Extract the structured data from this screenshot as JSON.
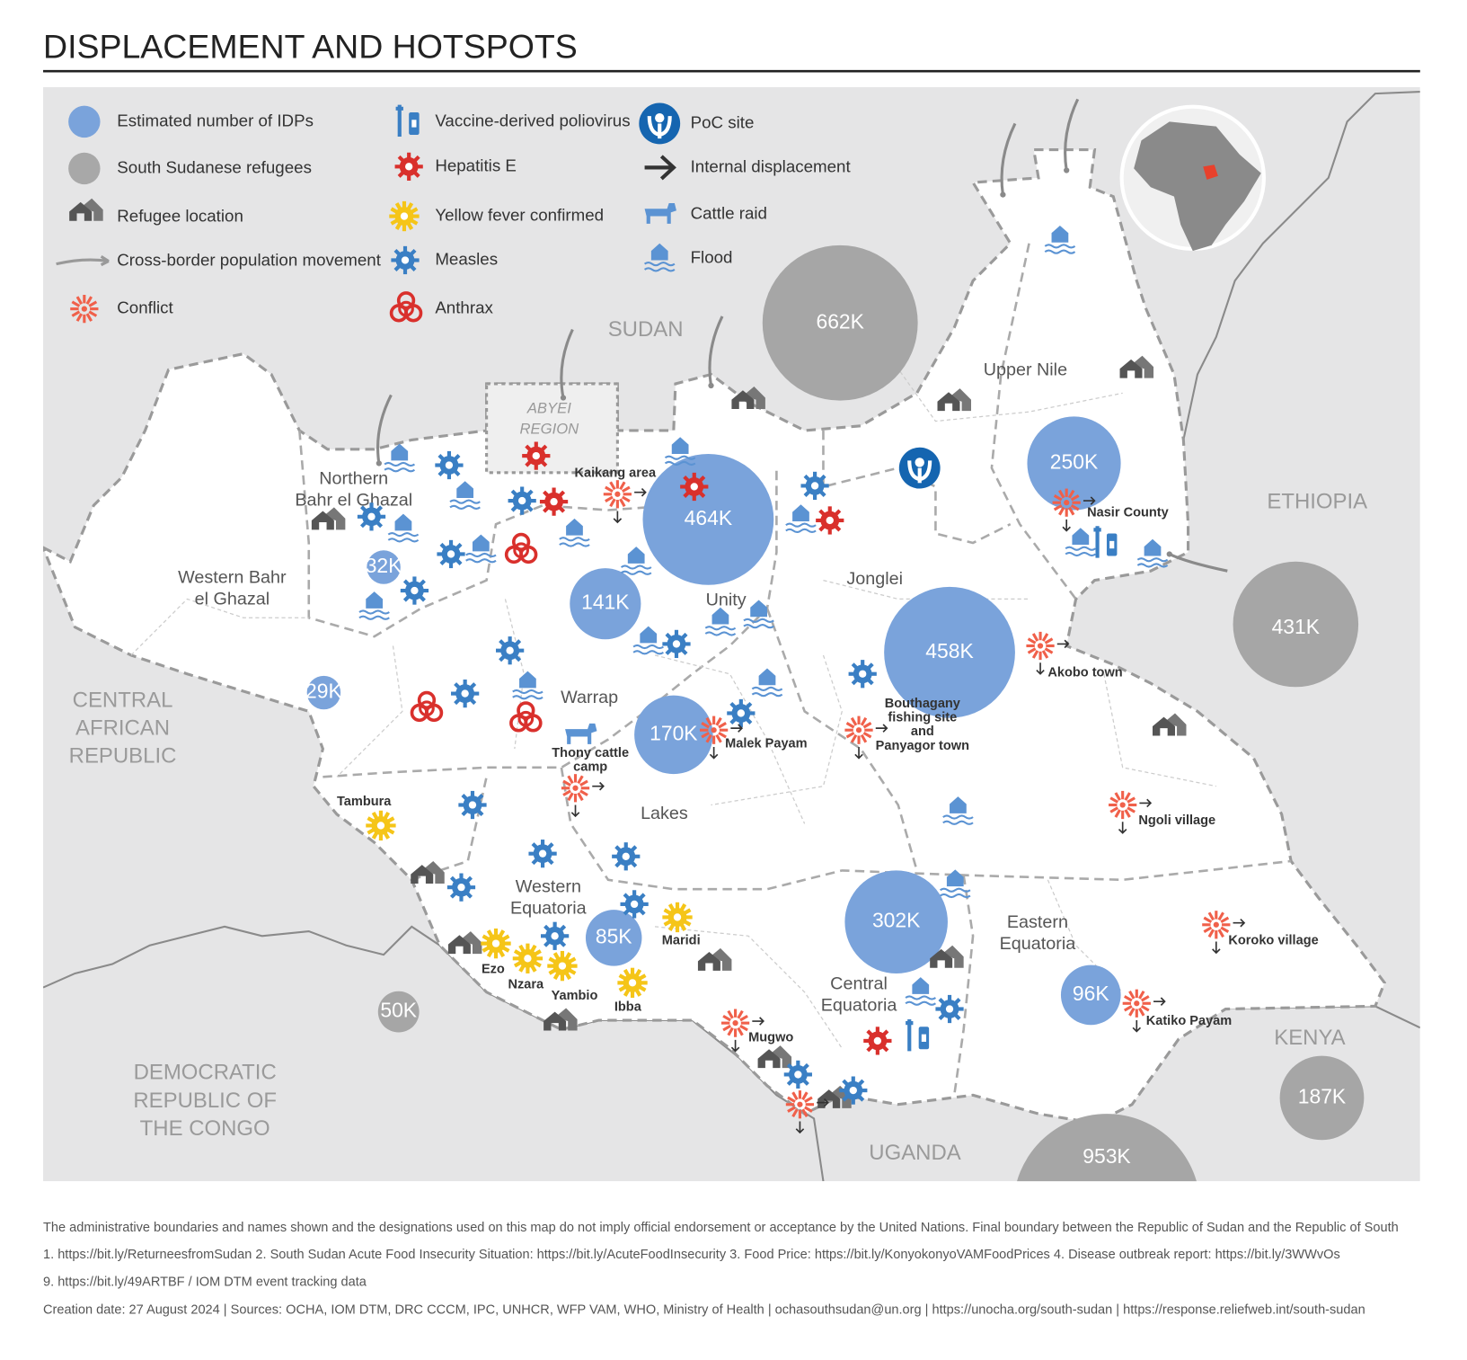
{
  "title": "DISPLACEMENT AND HOTSPOTS",
  "legend": [
    "Estimated number of IDPs",
    "South Sudanese refugees",
    "Refugee location",
    "Cross-border population movement",
    "Conflict",
    "Vaccine-derived poliovirus",
    "Hepatitis E",
    "Yellow fever confirmed",
    "Measles",
    "Anthrax",
    "PoC site",
    "Internal displacement",
    "Cattle raid",
    "Flood"
  ],
  "countries": [
    [
      "SUDAN"
    ],
    [
      "ETHIOPIA"
    ],
    [
      "CENTRAL",
      "AFRICAN",
      "REPUBLIC"
    ],
    [
      "KENYA"
    ],
    [
      "DEMOCRATIC",
      "REPUBLIC OF",
      "THE CONGO"
    ],
    [
      "UGANDA"
    ]
  ],
  "abyei": [
    "ABYEI",
    "REGION"
  ],
  "regions": [
    [
      "Northern",
      "Bahr el Ghazal"
    ],
    [
      "Western Bahr",
      "el Ghazal"
    ],
    [
      "Upper Nile"
    ],
    [
      "Unity"
    ],
    [
      "Jonglei"
    ],
    [
      "Warrap"
    ],
    [
      "Lakes"
    ],
    [
      "Western",
      "Equatoria"
    ],
    [
      "Central",
      "Equatoria"
    ],
    [
      "Eastern",
      "Equatoria"
    ]
  ],
  "idp_bubbles": [
    "464K",
    "458K",
    "302K",
    "250K",
    "170K",
    "141K",
    "96K",
    "85K",
    "32K",
    "29K"
  ],
  "refugee_bubbles": [
    "662K",
    "431K",
    "187K",
    "953K",
    "50K"
  ],
  "places": [
    [
      "Kaikang area"
    ],
    [
      "Nasir County"
    ],
    [
      "Akobo town"
    ],
    [
      "Malek Payam"
    ],
    [
      "Bouthagany",
      "fishing site",
      "and",
      "Panyagor town"
    ],
    [
      "Thony cattle",
      "camp"
    ],
    [
      "Tambura"
    ],
    [
      "Ngoli village"
    ],
    [
      "Koroko village"
    ],
    [
      "Katiko Payam"
    ],
    [
      "Mugwo"
    ],
    [
      "Ezo"
    ],
    [
      "Nzara"
    ],
    [
      "Yambio"
    ],
    [
      "Ibba"
    ],
    [
      "Maridi"
    ]
  ],
  "footer": [
    "The administrative boundaries and names shown and the designations used on this map do not imply official endorsement or acceptance by the United Nations. Final boundary between the Republic of Sudan and the Republic of South",
    "1. https://bit.ly/ReturneesfromSudan    2. South Sudan Acute Food Insecurity Situation: https://bit.ly/AcuteFoodInsecurity    3. Food Price: https://bit.ly/KonyokonyoVAMFoodPrices    4. Disease outbreak report: https://bit.ly/3WWvOs",
    "9. https://bit.ly/49ARTBF / IOM DTM event tracking data",
    "Creation date: 27 August 2024   |   Sources: OCHA, IOM DTM, DRC CCCM, IPC, UNHCR, WFP VAM, WHO, Ministry of Health  |  ochasouthsudan@un.org  |  https://unocha.org/south-sudan   |  https://response.reliefweb.int/south-sudan"
  ]
}
